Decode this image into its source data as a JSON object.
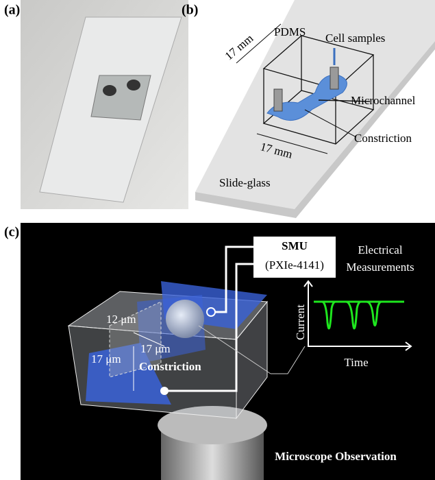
{
  "panel_a": {
    "label": "(a)"
  },
  "panel_b": {
    "label": "(b)",
    "pdms": "PDMS",
    "cell_samples": "Cell samples",
    "height": "17 mm",
    "width": "17 mm",
    "microchannel": "Microchannel",
    "constriction": "Constriction",
    "slide_glass": "Slide-glass"
  },
  "panel_c": {
    "label": "(c)",
    "smu": "SMU",
    "model": "(PXIe-4141)",
    "measurement_line1": "Electrical",
    "measurement_line2": "Measurements",
    "y_axis": "Current",
    "x_axis": "Time",
    "channel_height": "12 μm",
    "channel_length": "17 μm",
    "channel_width": "17 μm",
    "constriction": "Constriction",
    "microscope": "Microscope Observation"
  }
}
